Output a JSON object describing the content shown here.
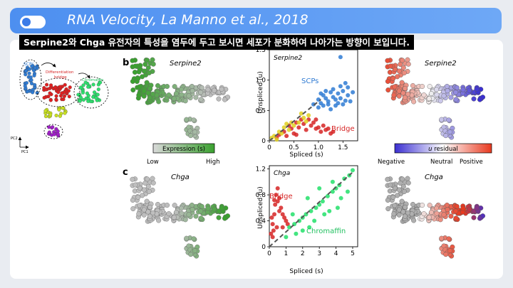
{
  "header": {
    "title": "RNA Velocity, La Manno et al., 2018"
  },
  "caption": "Serpine2와 Chga 유전자의 특성을 염두에 두고 보시면 세포가 분화하여 나아가는 방향이 보입니다.",
  "colors": {
    "header_blue": "#4d8ff0",
    "expression_green": "#3aa12f",
    "scp_blue": "#2f7bd3",
    "bridge_red": "#d62424",
    "chromaffin_green": "#22e06a",
    "negative": "#3b2fd1",
    "positive": "#e8391f"
  },
  "overview": {
    "scps": "SCPs",
    "differentiation": "Differentiation",
    "bridge": "bridge",
    "chromaffin": "Chromaffin",
    "pc2": "PC2",
    "pc1": "PC1"
  },
  "panel_b": {
    "label": "b",
    "umap_gene": "Serpine2",
    "scatter_gene": "Serpine2",
    "residual_gene": "Serpine2",
    "annot_scps": "SCPs",
    "annot_bridge": "Bridge"
  },
  "panel_c": {
    "label": "c",
    "umap_gene": "Chga",
    "scatter_gene": "Chga",
    "residual_gene": "Chga",
    "annot_bridge": "Bridge",
    "annot_chromaffin": "Chromaffin"
  },
  "expression_bar": {
    "label": "Expression (s)",
    "low": "Low",
    "high": "High"
  },
  "residual_bar": {
    "label_prefix": "u",
    "label_suffix": " residual",
    "negative": "Negative",
    "neutral": "Neutral",
    "positive": "Positive"
  },
  "chart_data": [
    {
      "type": "scatter",
      "title": "Serpine2",
      "xlabel": "Spliced (s)",
      "ylabel": "Unspliced (u)",
      "xlim": [
        0,
        1.8
      ],
      "ylim": [
        0,
        1.5
      ],
      "xticks": [
        "0",
        "0.5",
        "1.0",
        "1.5"
      ],
      "yticks": [
        "0",
        "0.5",
        "1.0",
        "1.5"
      ],
      "series": [
        {
          "name": "SCPs",
          "points": [
            [
              1.0,
              0.68
            ],
            [
              1.05,
              0.62
            ],
            [
              1.1,
              0.75
            ],
            [
              1.15,
              0.7
            ],
            [
              1.2,
              0.65
            ],
            [
              1.25,
              0.8
            ],
            [
              1.3,
              0.72
            ],
            [
              1.35,
              0.68
            ],
            [
              1.4,
              0.78
            ],
            [
              1.45,
              0.7
            ],
            [
              1.5,
              0.82
            ],
            [
              1.55,
              0.66
            ],
            [
              1.6,
              0.75
            ],
            [
              1.1,
              0.58
            ],
            [
              1.2,
              0.6
            ],
            [
              1.3,
              0.85
            ],
            [
              1.4,
              0.62
            ],
            [
              1.45,
              0.9
            ],
            [
              1.25,
              0.52
            ],
            [
              1.35,
              0.58
            ],
            [
              1.5,
              0.6
            ],
            [
              1.6,
              0.88
            ],
            [
              1.15,
              0.82
            ],
            [
              1.05,
              0.78
            ],
            [
              1.7,
              0.8
            ],
            [
              1.65,
              0.65
            ],
            [
              1.55,
              0.95
            ],
            [
              1.0,
              0.55
            ],
            [
              0.9,
              0.6
            ],
            [
              1.45,
              1.38
            ]
          ]
        },
        {
          "name": "Bridge",
          "points": [
            [
              0.15,
              0.05
            ],
            [
              0.2,
              0.1
            ],
            [
              0.3,
              0.15
            ],
            [
              0.35,
              0.08
            ],
            [
              0.45,
              0.2
            ],
            [
              0.5,
              0.12
            ],
            [
              0.55,
              0.3
            ],
            [
              0.6,
              0.22
            ],
            [
              0.7,
              0.28
            ],
            [
              0.75,
              0.18
            ],
            [
              0.8,
              0.35
            ],
            [
              0.85,
              0.25
            ],
            [
              0.9,
              0.3
            ],
            [
              0.95,
              0.2
            ],
            [
              1.0,
              0.22
            ],
            [
              1.05,
              0.15
            ],
            [
              1.1,
              0.25
            ],
            [
              1.15,
              0.18
            ],
            [
              1.2,
              0.2
            ],
            [
              0.65,
              0.35
            ],
            [
              0.4,
              0.25
            ],
            [
              1.25,
              0.12
            ],
            [
              1.3,
              0.15
            ],
            [
              0.95,
              0.35
            ],
            [
              0.55,
              0.1
            ]
          ]
        },
        {
          "name": "",
          "points": [
            [
              0.1,
              0.08
            ],
            [
              0.25,
              0.12
            ],
            [
              0.4,
              0.18
            ],
            [
              0.5,
              0.25
            ],
            [
              0.6,
              0.3
            ],
            [
              0.3,
              0.22
            ],
            [
              0.7,
              0.38
            ],
            [
              0.8,
              0.42
            ],
            [
              0.2,
              0.15
            ],
            [
              0.45,
              0.3
            ],
            [
              0.65,
              0.45
            ],
            [
              0.75,
              0.32
            ],
            [
              0.15,
              0.02
            ],
            [
              0.05,
              0.05
            ],
            [
              0.35,
              0.28
            ]
          ]
        }
      ],
      "fit_line": [
        [
          0,
          0
        ],
        [
          1.05,
          0.68
        ]
      ]
    },
    {
      "type": "scatter",
      "title": "Chga",
      "xlabel": "Spliced (s)",
      "ylabel": "Unspliced (u)",
      "xlim": [
        0,
        5.3
      ],
      "ylim": [
        0,
        1.25
      ],
      "xticks": [
        "0",
        "1",
        "2",
        "3",
        "4",
        "5"
      ],
      "yticks": [
        "0",
        "0.4",
        "0.8",
        "1.2"
      ],
      "series": [
        {
          "name": "Bridge",
          "points": [
            [
              0.1,
              0.2
            ],
            [
              0.2,
              0.35
            ],
            [
              0.3,
              0.5
            ],
            [
              0.35,
              0.65
            ],
            [
              0.4,
              0.8
            ],
            [
              0.5,
              0.7
            ],
            [
              0.6,
              0.55
            ],
            [
              0.7,
              0.6
            ],
            [
              0.8,
              0.5
            ],
            [
              0.9,
              0.45
            ],
            [
              1.0,
              0.4
            ],
            [
              0.5,
              0.9
            ],
            [
              0.3,
              0.72
            ],
            [
              0.2,
              0.15
            ],
            [
              0.15,
              0.45
            ],
            [
              0.6,
              0.75
            ],
            [
              0.45,
              0.3
            ],
            [
              0.25,
              0.25
            ],
            [
              0.8,
              0.3
            ],
            [
              1.1,
              0.35
            ]
          ]
        },
        {
          "name": "Chromaffin",
          "points": [
            [
              1.2,
              0.3
            ],
            [
              1.5,
              0.35
            ],
            [
              1.8,
              0.4
            ],
            [
              2.0,
              0.45
            ],
            [
              2.2,
              0.5
            ],
            [
              2.5,
              0.55
            ],
            [
              2.8,
              0.6
            ],
            [
              3.0,
              0.65
            ],
            [
              3.2,
              0.7
            ],
            [
              3.5,
              0.78
            ],
            [
              3.8,
              0.85
            ],
            [
              4.0,
              0.9
            ],
            [
              4.2,
              0.95
            ],
            [
              4.5,
              1.05
            ],
            [
              4.8,
              1.1
            ],
            [
              5.0,
              1.18
            ],
            [
              1.6,
              0.2
            ],
            [
              2.0,
              0.25
            ],
            [
              2.4,
              0.3
            ],
            [
              2.7,
              0.4
            ],
            [
              3.3,
              0.5
            ],
            [
              3.6,
              0.55
            ],
            [
              4.1,
              0.6
            ],
            [
              1.4,
              0.5
            ],
            [
              2.3,
              0.75
            ],
            [
              3.0,
              0.9
            ],
            [
              3.8,
              1.0
            ],
            [
              4.3,
              0.75
            ],
            [
              1.0,
              0.15
            ],
            [
              4.7,
              0.85
            ]
          ]
        }
      ],
      "fit_line": [
        [
          0,
          0
        ],
        [
          5.0,
          1.15
        ]
      ]
    }
  ]
}
